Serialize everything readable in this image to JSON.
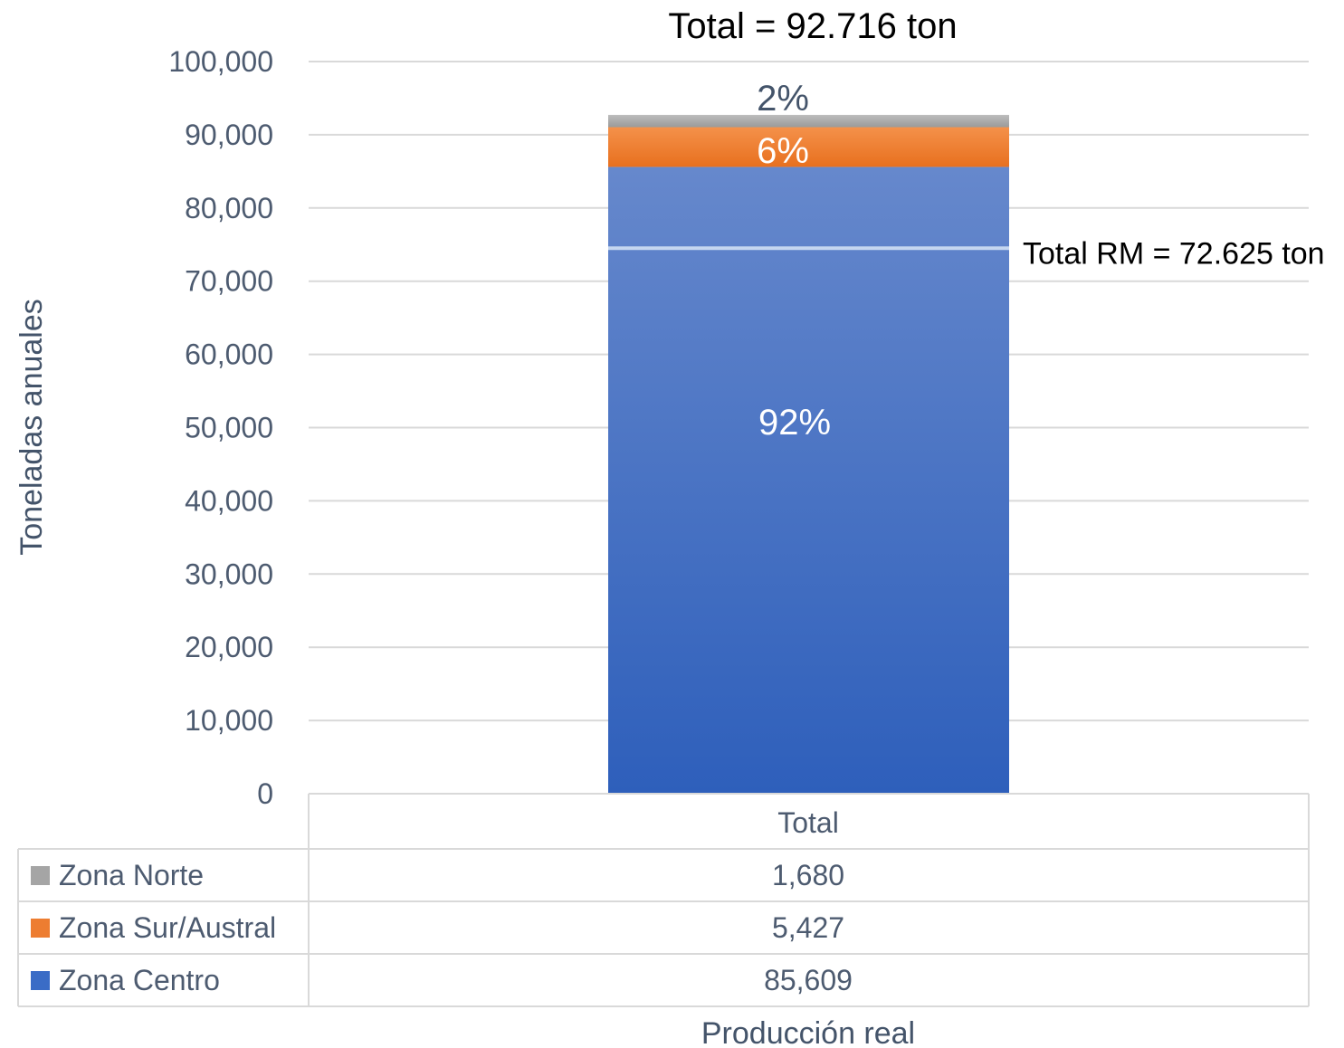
{
  "chart_data": {
    "type": "bar",
    "stacked": true,
    "title": "Total = 92.716 ton",
    "ylabel": "Toneladas anuales",
    "xlabel": "Producción real",
    "categories": [
      "Total"
    ],
    "ylim": [
      0,
      100000
    ],
    "yticks": [
      0,
      10000,
      20000,
      30000,
      40000,
      50000,
      60000,
      70000,
      80000,
      90000,
      100000
    ],
    "ytick_labels": [
      "0",
      "10,000",
      "20,000",
      "30,000",
      "40,000",
      "50,000",
      "60,000",
      "70,000",
      "80,000",
      "90,000",
      "100,000"
    ],
    "grid": true,
    "series": [
      {
        "name": "Zona Centro",
        "values": [
          85609
        ],
        "value_label": "85,609",
        "pct_label": "92%",
        "color": "#3a6cc6"
      },
      {
        "name": "Zona Sur/Austral",
        "values": [
          5427
        ],
        "value_label": "5,427",
        "pct_label": "6%",
        "color": "#ed7d31"
      },
      {
        "name": "Zona Norte",
        "values": [
          1680
        ],
        "value_label": "1,680",
        "pct_label": "2%",
        "color": "#a5a5a5"
      }
    ],
    "reference_line": {
      "value": 74500,
      "label": "Total RM = 72.625 ton",
      "color": "#c5d6f0"
    }
  }
}
